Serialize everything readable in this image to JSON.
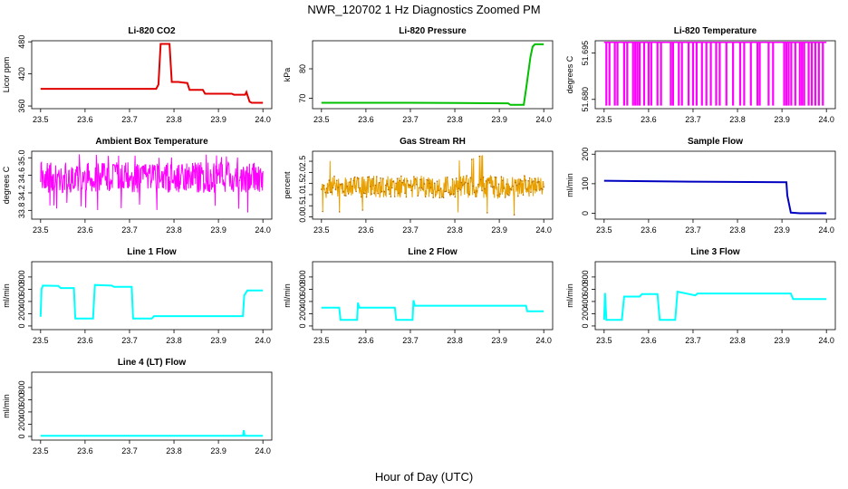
{
  "figure": {
    "title": "NWR_120702  1 Hz Diagnostics Zoomed PM",
    "xlabel": "Hour of Day (UTC)"
  },
  "chart_data": [
    {
      "type": "line",
      "title": "Li-820 CO2",
      "ylabel": "Licor ppm",
      "color": "#e00000",
      "xlim": [
        23.5,
        24.0
      ],
      "xticks": [
        "23.5",
        "23.6",
        "23.7",
        "23.8",
        "23.9",
        "24.0"
      ],
      "ylim": [
        355,
        482
      ],
      "yticks": [
        360,
        420,
        480
      ],
      "ytick_labels": [
        "360",
        "420",
        "480"
      ],
      "series": [
        {
          "x": [
            23.5,
            23.76,
            23.765,
            23.77,
            23.79,
            23.795,
            23.81,
            23.83,
            23.835,
            23.865,
            23.87,
            23.93,
            23.935,
            23.96,
            23.963,
            23.97,
            23.975,
            24.0
          ],
          "y": [
            392,
            392,
            400,
            476,
            476,
            405,
            405,
            403,
            390,
            390,
            383,
            383,
            381,
            381,
            386,
            368,
            366,
            366
          ]
        }
      ]
    },
    {
      "type": "line",
      "title": "Li-820 Pressure",
      "ylabel": "kPa",
      "color": "#00c000",
      "xlim": [
        23.5,
        24.0
      ],
      "xticks": [
        "23.5",
        "23.6",
        "23.7",
        "23.8",
        "23.9",
        "24.0"
      ],
      "ylim": [
        66.5,
        89.5
      ],
      "yticks": [
        70,
        80
      ],
      "ytick_labels": [
        "70",
        "80"
      ],
      "series": [
        {
          "x": [
            23.5,
            23.7,
            23.92,
            23.925,
            23.955,
            23.96,
            23.97,
            23.975,
            23.98,
            24.0
          ],
          "y": [
            68.5,
            68.5,
            68.3,
            67.8,
            67.8,
            73,
            84,
            87.5,
            88.3,
            88.3
          ]
        }
      ]
    },
    {
      "type": "line",
      "title": "Li-820 Temperature",
      "ylabel": "degrees C",
      "color": "#ff00ff",
      "xlim": [
        23.5,
        24.0
      ],
      "xticks": [
        "23.5",
        "23.6",
        "23.7",
        "23.8",
        "23.9",
        "24.0"
      ],
      "ylim": [
        51.677,
        51.699
      ],
      "yticks": [
        51.68,
        51.695
      ],
      "ytick_labels": [
        "51.680",
        "51.695"
      ],
      "levels": [
        51.6985,
        51.678
      ],
      "switch_x": [
        23.505,
        23.512,
        23.524,
        23.53,
        23.545,
        23.552,
        23.565,
        23.57,
        23.575,
        23.58,
        23.59,
        23.6,
        23.606,
        23.62,
        23.628,
        23.65,
        23.655,
        23.668,
        23.675,
        23.69,
        23.7,
        23.708,
        23.72,
        23.73,
        23.74,
        23.752,
        23.76,
        23.775,
        23.79,
        23.806,
        23.815,
        23.83,
        23.845,
        23.85,
        23.87,
        23.88,
        23.905,
        23.91,
        23.915,
        23.921,
        23.93,
        23.94,
        23.945,
        23.95,
        23.96,
        23.967,
        23.975,
        23.983,
        23.992
      ]
    },
    {
      "type": "line",
      "title": "Ambient Box Temperature",
      "ylabel": "degrees C",
      "color": "#ff00ff",
      "xlim": [
        23.5,
        24.0
      ],
      "xticks": [
        "23.5",
        "23.6",
        "23.7",
        "23.8",
        "23.9",
        "24.0"
      ],
      "ylim": [
        33.6,
        35.15
      ],
      "yticks": [
        33.8,
        34.2,
        34.6,
        35.0
      ],
      "ytick_labels": [
        "33.8",
        "34.2",
        "34.6",
        "35.0"
      ],
      "noise": {
        "n": 500,
        "mean": 34.55,
        "amp": 0.35,
        "spike_low": 33.75,
        "spike_high": 35.1
      }
    },
    {
      "type": "line",
      "title": "Gas Stream RH",
      "ylabel": "percent",
      "color": "#e8a000",
      "point_color": "#b36b00",
      "xlim": [
        23.5,
        24.0
      ],
      "xticks": [
        "23.5",
        "23.6",
        "23.7",
        "23.8",
        "23.9",
        "24.0"
      ],
      "ylim": [
        -0.1,
        2.95
      ],
      "yticks": [
        0.0,
        0.5,
        1.0,
        1.5,
        2.0,
        2.5
      ],
      "ytick_labels": [
        "0.0",
        "0.5",
        "1.0",
        "1.5",
        "2.0",
        "2.5"
      ],
      "noise": {
        "n": 520,
        "mean": 1.35,
        "amp": 0.5,
        "spike_low": 0.05,
        "spike_high": 2.8
      }
    },
    {
      "type": "line",
      "title": "Sample Flow",
      "ylabel": "ml/min",
      "color": "#0000c0",
      "xlim": [
        23.5,
        24.0
      ],
      "xticks": [
        "23.5",
        "23.6",
        "23.7",
        "23.8",
        "23.9",
        "24.0"
      ],
      "ylim": [
        -20,
        210
      ],
      "yticks": [
        0,
        100,
        200
      ],
      "ytick_labels": [
        "0",
        "100",
        "200"
      ],
      "series": [
        {
          "x": [
            23.5,
            23.7,
            23.91,
            23.912,
            23.92,
            23.94,
            24.0
          ],
          "y": [
            110,
            107,
            105,
            60,
            2,
            0,
            0
          ]
        }
      ]
    },
    {
      "type": "line",
      "title": "Line 1 Flow",
      "ylabel": "ml/min",
      "color": "#00ffff",
      "xlim": [
        23.5,
        24.0
      ],
      "xticks": [
        "23.5",
        "23.6",
        "23.7",
        "23.8",
        "23.9",
        "24.0"
      ],
      "ylim": [
        -60,
        1050
      ],
      "yticks": [
        0,
        200,
        400,
        600,
        800
      ],
      "ytick_labels": [
        "0",
        "200",
        "400",
        "600",
        "800"
      ],
      "series": [
        {
          "x": [
            23.5,
            23.502,
            23.505,
            23.54,
            23.545,
            23.575,
            23.578,
            23.618,
            23.622,
            23.66,
            23.665,
            23.705,
            23.708,
            23.75,
            23.755,
            23.955,
            23.958,
            23.965,
            24.0
          ],
          "y": [
            150,
            600,
            660,
            655,
            620,
            620,
            120,
            120,
            670,
            660,
            640,
            640,
            120,
            120,
            160,
            160,
            500,
            580,
            580
          ]
        }
      ]
    },
    {
      "type": "line",
      "title": "Line 2 Flow",
      "ylabel": "ml/min",
      "color": "#00ffff",
      "xlim": [
        23.5,
        24.0
      ],
      "xticks": [
        "23.5",
        "23.6",
        "23.7",
        "23.8",
        "23.9",
        "24.0"
      ],
      "ylim": [
        -60,
        1050
      ],
      "yticks": [
        0,
        200,
        400,
        600,
        800
      ],
      "ytick_labels": [
        "0",
        "200",
        "400",
        "600",
        "800"
      ],
      "series": [
        {
          "x": [
            23.5,
            23.54,
            23.543,
            23.58,
            23.582,
            23.585,
            23.665,
            23.668,
            23.705,
            23.707,
            23.71,
            23.96,
            23.963,
            24.0
          ],
          "y": [
            300,
            300,
            100,
            100,
            380,
            300,
            300,
            100,
            100,
            420,
            330,
            330,
            240,
            240
          ]
        }
      ]
    },
    {
      "type": "line",
      "title": "Line 3 Flow",
      "ylabel": "ml/min",
      "color": "#00ffff",
      "xlim": [
        23.5,
        24.0
      ],
      "xticks": [
        "23.5",
        "23.6",
        "23.7",
        "23.8",
        "23.9",
        "24.0"
      ],
      "ylim": [
        -60,
        1050
      ],
      "yticks": [
        0,
        200,
        400,
        600,
        800
      ],
      "ytick_labels": [
        "0",
        "200",
        "400",
        "600",
        "800"
      ],
      "series": [
        {
          "x": [
            23.5,
            23.502,
            23.505,
            23.54,
            23.545,
            23.58,
            23.585,
            23.62,
            23.625,
            23.66,
            23.665,
            23.705,
            23.71,
            23.92,
            23.925,
            24.0
          ],
          "y": [
            100,
            540,
            100,
            100,
            480,
            480,
            520,
            520,
            100,
            100,
            560,
            500,
            530,
            530,
            440,
            440
          ]
        }
      ]
    },
    {
      "type": "line",
      "title": "Line 4 (LT) Flow",
      "ylabel": "ml/min",
      "color": "#00ffff",
      "xlim": [
        23.5,
        24.0
      ],
      "xticks": [
        "23.5",
        "23.6",
        "23.7",
        "23.8",
        "23.9",
        "24.0"
      ],
      "ylim": [
        -60,
        1050
      ],
      "yticks": [
        0,
        200,
        400,
        600,
        800
      ],
      "ytick_labels": [
        "0",
        "200",
        "400",
        "600",
        "800"
      ],
      "series": [
        {
          "x": [
            23.5,
            23.955,
            23.957,
            23.959,
            23.961,
            24.0
          ],
          "y": [
            10,
            10,
            100,
            10,
            10,
            10
          ]
        }
      ]
    }
  ]
}
